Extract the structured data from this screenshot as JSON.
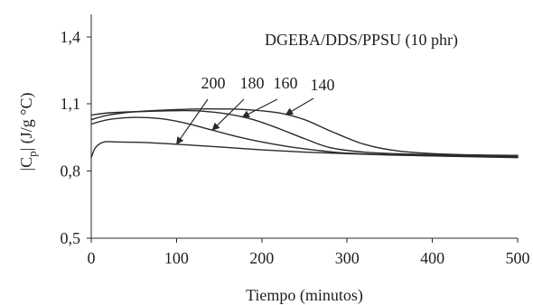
{
  "chart_data": {
    "type": "line",
    "title": "DGEBA/DDS/PPSU (10 phr)",
    "xlabel": "Tiempo (minutos)",
    "ylabel": {
      "prefix": "|C",
      "subscript": "p",
      "suffix": "| (J/g °C)"
    },
    "xlim": [
      0,
      500
    ],
    "ylim": [
      0.5,
      1.5
    ],
    "xticks": [
      0,
      100,
      200,
      300,
      400,
      500
    ],
    "yticks": [
      0.5,
      0.8,
      1.1,
      1.4
    ],
    "xtick_labels": [
      "0",
      "100",
      "200",
      "300",
      "400",
      "500"
    ],
    "ytick_labels": [
      "0,5",
      "0,8",
      "1,1",
      "1,4"
    ],
    "grid": false,
    "legend": null,
    "series": [
      {
        "name": "140",
        "x": [
          0,
          20,
          50,
          100,
          140,
          180,
          220,
          250,
          280,
          320,
          360,
          420,
          500
        ],
        "y": [
          1.03,
          1.05,
          1.065,
          1.075,
          1.078,
          1.075,
          1.06,
          1.03,
          0.98,
          0.92,
          0.89,
          0.875,
          0.87
        ]
      },
      {
        "name": "160",
        "x": [
          0,
          20,
          50,
          100,
          130,
          160,
          190,
          220,
          250,
          280,
          320,
          380,
          500
        ],
        "y": [
          1.05,
          1.06,
          1.065,
          1.07,
          1.068,
          1.055,
          1.03,
          0.99,
          0.945,
          0.905,
          0.885,
          0.875,
          0.865
        ]
      },
      {
        "name": "180",
        "x": [
          0,
          20,
          50,
          80,
          110,
          140,
          170,
          200,
          230,
          260,
          300,
          380,
          500
        ],
        "y": [
          1.01,
          1.03,
          1.04,
          1.035,
          1.015,
          0.985,
          0.955,
          0.93,
          0.91,
          0.895,
          0.88,
          0.87,
          0.862
        ]
      },
      {
        "name": "200",
        "x": [
          0,
          5,
          15,
          30,
          60,
          100,
          150,
          200,
          250,
          300,
          350,
          420,
          500
        ],
        "y": [
          0.86,
          0.905,
          0.93,
          0.93,
          0.928,
          0.92,
          0.908,
          0.895,
          0.885,
          0.878,
          0.872,
          0.866,
          0.86
        ]
      }
    ],
    "annotations": [
      {
        "series": "200",
        "label": "200"
      },
      {
        "series": "180",
        "label": "180"
      },
      {
        "series": "160",
        "label": "160"
      },
      {
        "series": "140",
        "label": "140"
      }
    ]
  }
}
